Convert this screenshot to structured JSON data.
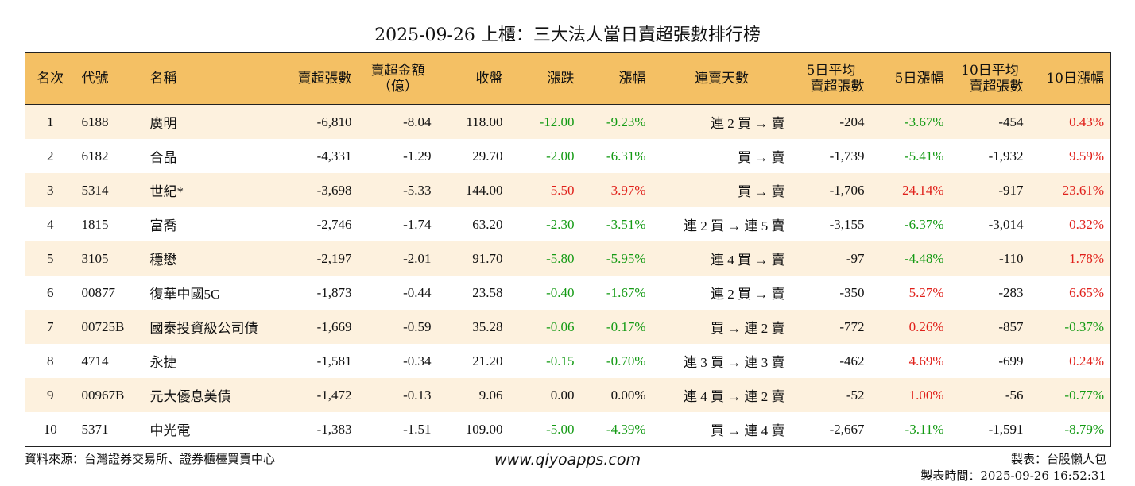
{
  "title": "2025-09-26 上櫃：三大法人當日賣超張數排行榜",
  "headers": {
    "rank": "名次",
    "code": "代號",
    "name": "名稱",
    "sell_lots": "賣超張數",
    "sell_amount_l1": "賣超金額",
    "sell_amount_l2": "（億）",
    "close": "收盤",
    "change": "漲跌",
    "change_pct": "漲幅",
    "streak": "連賣天數",
    "avg5_l1": "5日平均",
    "avg5_l2": "賣超張數",
    "pct5": "5日漲幅",
    "avg10_l1": "10日平均",
    "avg10_l2": "賣超張數",
    "pct10": "10日漲幅"
  },
  "rows": [
    {
      "rank": "1",
      "code": "6188",
      "name": "廣明",
      "sell_lots": "-6,810",
      "sell_amount": "-8.04",
      "close": "118.00",
      "change": "-12.00",
      "change_pct": "-9.23%",
      "streak": "連 2 買 → 賣",
      "avg5": "-204",
      "pct5": "-3.67%",
      "avg10": "-454",
      "pct10": "0.43%"
    },
    {
      "rank": "2",
      "code": "6182",
      "name": "合晶",
      "sell_lots": "-4,331",
      "sell_amount": "-1.29",
      "close": "29.70",
      "change": "-2.00",
      "change_pct": "-6.31%",
      "streak": "買 → 賣",
      "avg5": "-1,739",
      "pct5": "-5.41%",
      "avg10": "-1,932",
      "pct10": "9.59%"
    },
    {
      "rank": "3",
      "code": "5314",
      "name": "世紀*",
      "sell_lots": "-3,698",
      "sell_amount": "-5.33",
      "close": "144.00",
      "change": "5.50",
      "change_pct": "3.97%",
      "streak": "買 → 賣",
      "avg5": "-1,706",
      "pct5": "24.14%",
      "avg10": "-917",
      "pct10": "23.61%"
    },
    {
      "rank": "4",
      "code": "1815",
      "name": "富喬",
      "sell_lots": "-2,746",
      "sell_amount": "-1.74",
      "close": "63.20",
      "change": "-2.30",
      "change_pct": "-3.51%",
      "streak": "連 2 買 → 連 5 賣",
      "avg5": "-3,155",
      "pct5": "-6.37%",
      "avg10": "-3,014",
      "pct10": "0.32%"
    },
    {
      "rank": "5",
      "code": "3105",
      "name": "穩懋",
      "sell_lots": "-2,197",
      "sell_amount": "-2.01",
      "close": "91.70",
      "change": "-5.80",
      "change_pct": "-5.95%",
      "streak": "連 4 買 → 賣",
      "avg5": "-97",
      "pct5": "-4.48%",
      "avg10": "-110",
      "pct10": "1.78%"
    },
    {
      "rank": "6",
      "code": "00877",
      "name": "復華中國5G",
      "sell_lots": "-1,873",
      "sell_amount": "-0.44",
      "close": "23.58",
      "change": "-0.40",
      "change_pct": "-1.67%",
      "streak": "連 2 買 → 賣",
      "avg5": "-350",
      "pct5": "5.27%",
      "avg10": "-283",
      "pct10": "6.65%"
    },
    {
      "rank": "7",
      "code": "00725B",
      "name": "國泰投資級公司債",
      "sell_lots": "-1,669",
      "sell_amount": "-0.59",
      "close": "35.28",
      "change": "-0.06",
      "change_pct": "-0.17%",
      "streak": "買 → 連 2 賣",
      "avg5": "-772",
      "pct5": "0.26%",
      "avg10": "-857",
      "pct10": "-0.37%"
    },
    {
      "rank": "8",
      "code": "4714",
      "name": "永捷",
      "sell_lots": "-1,581",
      "sell_amount": "-0.34",
      "close": "21.20",
      "change": "-0.15",
      "change_pct": "-0.70%",
      "streak": "連 3 買 → 連 3 賣",
      "avg5": "-462",
      "pct5": "4.69%",
      "avg10": "-699",
      "pct10": "0.24%"
    },
    {
      "rank": "9",
      "code": "00967B",
      "name": "元大優息美債",
      "sell_lots": "-1,472",
      "sell_amount": "-0.13",
      "close": "9.06",
      "change": "0.00",
      "change_pct": "0.00%",
      "streak": "連 4 買 → 連 2 賣",
      "avg5": "-52",
      "pct5": "1.00%",
      "avg10": "-56",
      "pct10": "-0.77%"
    },
    {
      "rank": "10",
      "code": "5371",
      "name": "中光電",
      "sell_lots": "-1,383",
      "sell_amount": "-1.51",
      "close": "109.00",
      "change": "-5.00",
      "change_pct": "-4.39%",
      "streak": "買 → 連 4 賣",
      "avg5": "-2,667",
      "pct5": "-3.11%",
      "avg10": "-1,591",
      "pct10": "-8.79%"
    }
  ],
  "colors": {
    "header_bg": "#f4c064",
    "stripe": "#fdf1de",
    "up": "#e0201a",
    "down": "#139a13"
  },
  "footer": {
    "source": "資料來源：台灣證券交易所、證券櫃檯買賣中心",
    "site": "www.qiyoapps.com",
    "maker": "製表：台股懶人包",
    "time": "製表時間：2025-09-26 16:52:31"
  }
}
